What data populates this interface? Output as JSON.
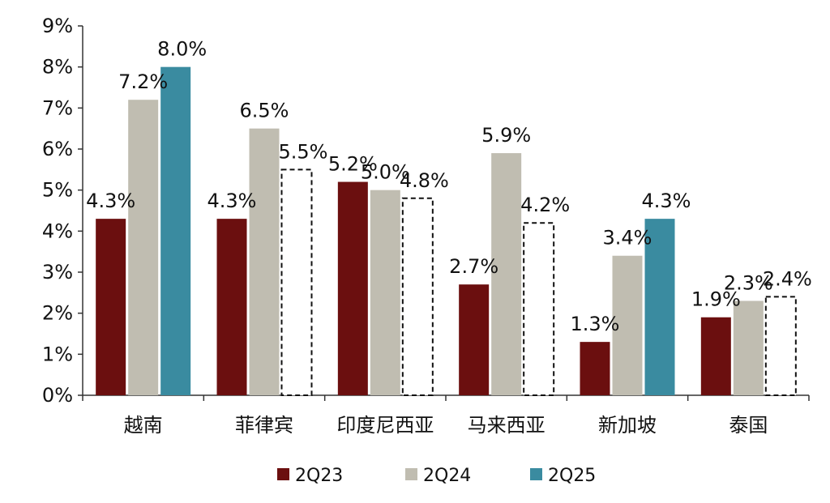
{
  "chart_data": {
    "type": "bar",
    "categories": [
      "越南",
      "菲律宾",
      "印度尼西亚",
      "马来西亚",
      "新加坡",
      "泰国"
    ],
    "series": [
      {
        "name": "2Q23",
        "values": [
          4.3,
          4.3,
          5.2,
          2.7,
          1.3,
          1.9
        ],
        "labels": [
          "4.3%",
          "4.3%",
          "5.2%",
          "2.7%",
          "1.3%",
          "1.9%"
        ],
        "color": "#6b0f0f",
        "style": "solid"
      },
      {
        "name": "2Q24",
        "values": [
          7.2,
          6.5,
          5.0,
          5.9,
          3.4,
          2.3
        ],
        "labels": [
          "7.2%",
          "6.5%",
          "5.0%",
          "5.9%",
          "3.4%",
          "2.3%"
        ],
        "color": "#c0bdb1",
        "style": "solid"
      },
      {
        "name": "2Q25",
        "values": [
          8.0,
          5.5,
          4.8,
          4.2,
          4.3,
          2.4
        ],
        "labels": [
          "8.0%",
          "5.5%",
          "4.8%",
          "4.2%",
          "4.3%",
          "2.4%"
        ],
        "color": "#3a8ba0",
        "styles": [
          "solid",
          "dashed",
          "dashed",
          "dashed",
          "solid",
          "dashed"
        ]
      }
    ],
    "yticks": [
      "0%",
      "1%",
      "2%",
      "3%",
      "4%",
      "5%",
      "6%",
      "7%",
      "8%",
      "9%"
    ],
    "ylim": [
      0,
      9
    ],
    "grid": false,
    "legend": "bottom"
  }
}
